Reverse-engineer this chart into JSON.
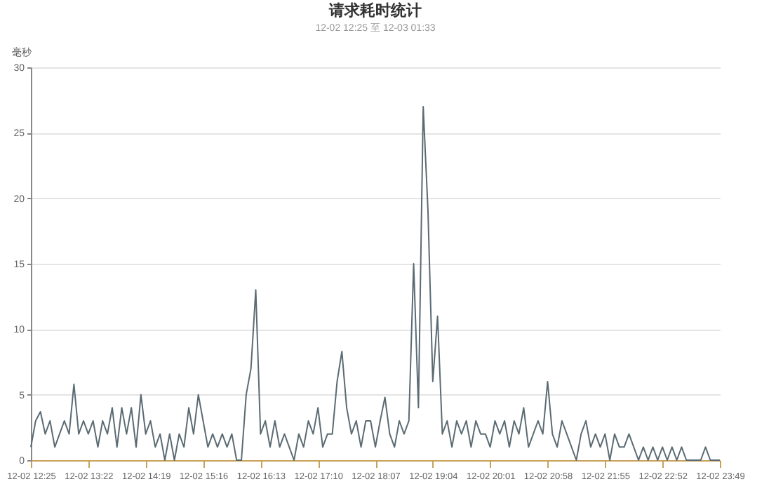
{
  "chart_data": {
    "type": "line",
    "title": "请求耗时统计",
    "subtitle": "12-02 12:25 至 12-03 01:33",
    "ylabel": "毫秒",
    "categories": [
      "12-02 12:25",
      null,
      null,
      null,
      null,
      null,
      null,
      null,
      null,
      null,
      null,
      null,
      "12-02 13:22",
      null,
      null,
      null,
      null,
      null,
      null,
      null,
      null,
      null,
      null,
      null,
      "12-02 14:19",
      null,
      null,
      null,
      null,
      null,
      null,
      null,
      null,
      null,
      null,
      null,
      "12-02 15:16",
      null,
      null,
      null,
      null,
      null,
      null,
      null,
      null,
      null,
      null,
      null,
      "12-02 16:13",
      null,
      null,
      null,
      null,
      null,
      null,
      null,
      null,
      null,
      null,
      null,
      "12-02 17:10",
      null,
      null,
      null,
      null,
      null,
      null,
      null,
      null,
      null,
      null,
      null,
      "12-02 18:07",
      null,
      null,
      null,
      null,
      null,
      null,
      null,
      null,
      null,
      null,
      null,
      "12-02 19:04",
      null,
      null,
      null,
      null,
      null,
      null,
      null,
      null,
      null,
      null,
      null,
      "12-02 20:01",
      null,
      null,
      null,
      null,
      null,
      null,
      null,
      null,
      null,
      null,
      null,
      "12-02 20:58",
      null,
      null,
      null,
      null,
      null,
      null,
      null,
      null,
      null,
      null,
      null,
      "12-02 21:55",
      null,
      null,
      null,
      null,
      null,
      null,
      null,
      null,
      null,
      null,
      null,
      "12-02 22:52",
      null,
      null,
      null,
      null,
      null,
      null,
      null,
      null,
      null,
      null,
      null,
      "12-02 23:49"
    ],
    "ylim": [
      0,
      30
    ],
    "yticks": [
      0,
      5,
      10,
      15,
      20,
      25,
      30
    ],
    "grid": "y",
    "marker": "none",
    "series": [
      {
        "color": "#5b6b73",
        "values": [
          1,
          3,
          3.7,
          2,
          3,
          1,
          2,
          3,
          2,
          5.8,
          2,
          3,
          2,
          3,
          1,
          3,
          2,
          4,
          1,
          4,
          2,
          4,
          1,
          5,
          2,
          3,
          1,
          2,
          0,
          2,
          0,
          2,
          1,
          4,
          2,
          5,
          3,
          1,
          2,
          1,
          2,
          1,
          2,
          0,
          0,
          5,
          7,
          13,
          2,
          3,
          1,
          3,
          1,
          2,
          1,
          0,
          2,
          1,
          3,
          2,
          4,
          1,
          2,
          2,
          6,
          8.3,
          4,
          2,
          3,
          1,
          3,
          3,
          1,
          3,
          4.8,
          2,
          1,
          3,
          2,
          3,
          15,
          4,
          27,
          19,
          6,
          11,
          2,
          3,
          1,
          3,
          2,
          3,
          1,
          3,
          2,
          2,
          1,
          3,
          2,
          3,
          1,
          3,
          2,
          4,
          1,
          2,
          3,
          2,
          6,
          2,
          1,
          3,
          2,
          1,
          0,
          2,
          3,
          1,
          2,
          1,
          2,
          0,
          2,
          1,
          1,
          2,
          1,
          0,
          1,
          0,
          1,
          0,
          1,
          0,
          1,
          0,
          1,
          0,
          0,
          0,
          0,
          1,
          0,
          0,
          0
        ]
      }
    ]
  }
}
